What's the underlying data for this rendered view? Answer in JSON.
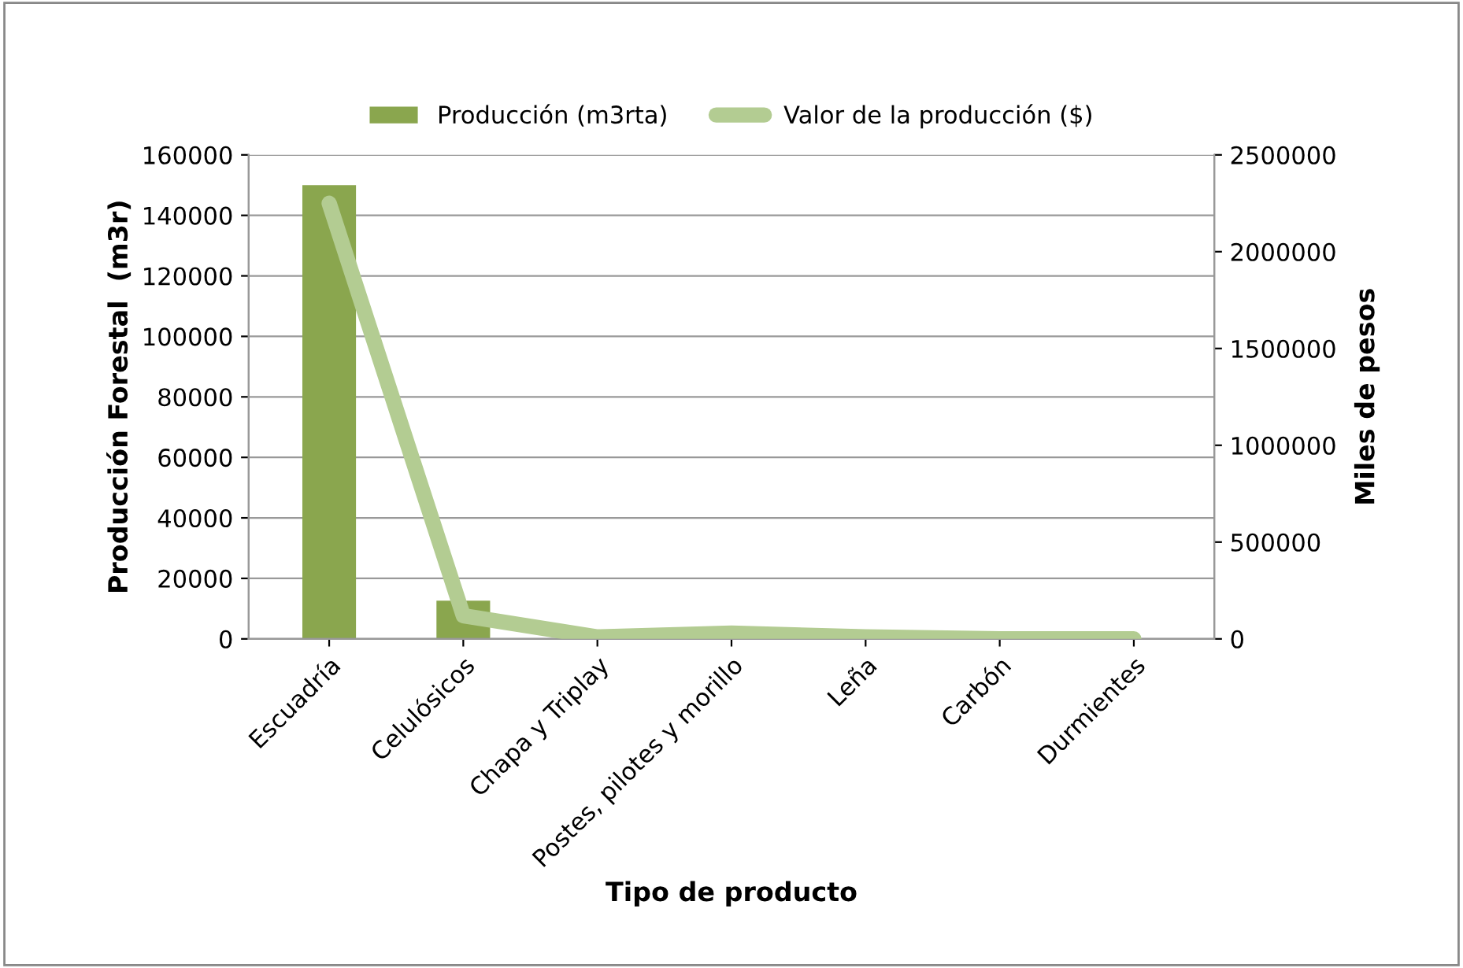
{
  "chart_data": {
    "type": "bar",
    "xlabel": "Tipo de producto",
    "ylabel": "Producción Forestal  (m3r)",
    "y2label": "Miles de pesos",
    "categories": [
      "Escuadría",
      "Celulósicos",
      "Chapa y Triplay",
      "Postes, pilotes y morillo",
      "Leña",
      "Carbón",
      "Durmientes"
    ],
    "series": [
      {
        "name": "Producción (m3rta)",
        "color": "#8aa64e",
        "values": [
          150000,
          12600,
          0,
          0,
          0,
          0,
          0
        ]
      },
      {
        "name": "Valor de la producción ($)",
        "type": "line",
        "axis": "y2",
        "color": "#b3cc92",
        "values": [
          2250000,
          120000,
          10000,
          30000,
          10000,
          0,
          0
        ]
      }
    ],
    "ylim": [
      0,
      160000
    ],
    "yticks": [
      0,
      20000,
      40000,
      60000,
      80000,
      100000,
      120000,
      140000,
      160000
    ],
    "y2lim": [
      0,
      2500000
    ],
    "y2ticks": [
      0,
      500000,
      1000000,
      1500000,
      2000000,
      2500000
    ],
    "grid": "y",
    "legend": "top",
    "marker": "none"
  }
}
